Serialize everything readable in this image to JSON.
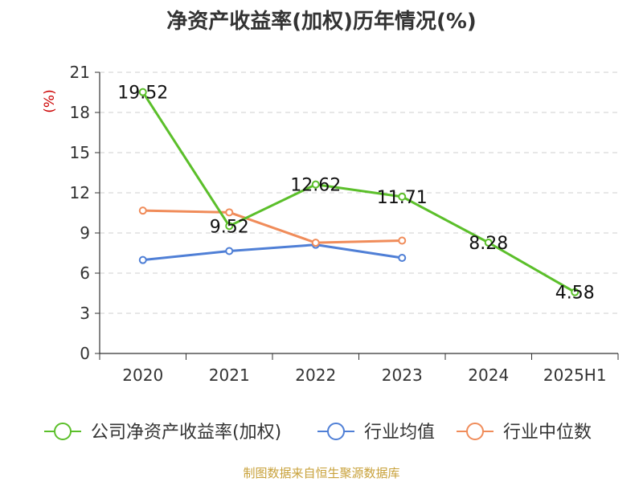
{
  "chart_data": {
    "type": "line",
    "title": "净资产收益率(加权)历年情况(%)",
    "ylabel": "(%)",
    "xlabel": "",
    "ylim": [
      0,
      21
    ],
    "yticks": [
      0,
      3,
      6,
      9,
      12,
      15,
      18,
      21
    ],
    "grid": true,
    "legend_position": "bottom",
    "categories": [
      "2020",
      "2021",
      "2022",
      "2023",
      "2024",
      "2025H1"
    ],
    "series": [
      {
        "name": "公司净资产收益率(加权)",
        "color": "#5bbf2a",
        "values": [
          19.52,
          9.52,
          12.62,
          11.71,
          8.28,
          4.58
        ],
        "labels": [
          "19.52",
          "9.52",
          "12.62",
          "11.71",
          "8.28",
          "4.58"
        ]
      },
      {
        "name": "行业均值",
        "color": "#4f7fd6",
        "values": [
          6.98,
          7.65,
          8.12,
          7.14,
          null,
          null
        ]
      },
      {
        "name": "行业中位数",
        "color": "#f08c5a",
        "values": [
          10.67,
          10.54,
          8.27,
          8.43,
          null,
          null
        ]
      }
    ]
  },
  "footer": "制图数据来自恒生聚源数据库"
}
